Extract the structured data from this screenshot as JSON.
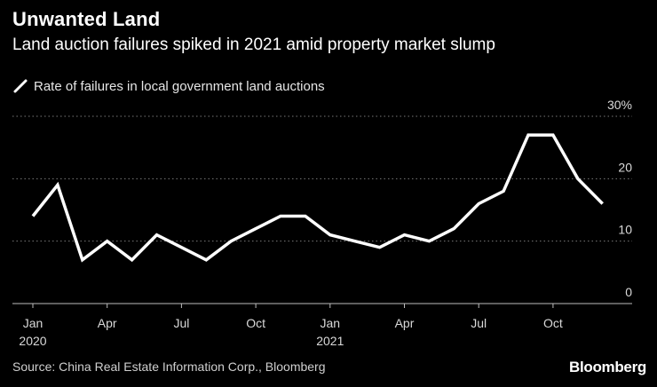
{
  "header": {
    "title": "Unwanted Land",
    "subtitle": "Land auction failures spiked in 2021 amid property market slump"
  },
  "footer": {
    "source": "Source: China Real Estate Information Corp., Bloomberg",
    "logo": "Bloomberg"
  },
  "colors": {
    "background": "#000000",
    "line": "#ffffff",
    "grid": "#7a7a7a",
    "text": "#d9d9d9"
  },
  "chart_data": {
    "type": "line",
    "title": "Unwanted Land",
    "subtitle": "Land auction failures spiked in 2021 amid property market slump",
    "xlabel": "",
    "ylabel": "",
    "legend_position": "top-left",
    "grid": true,
    "ylim": [
      0,
      30
    ],
    "y_ticks": [
      {
        "value": 30,
        "label": "30%"
      },
      {
        "value": 20,
        "label": "20"
      },
      {
        "value": 10,
        "label": "10"
      },
      {
        "value": 0,
        "label": "0"
      }
    ],
    "x_ticks": [
      {
        "index": 0,
        "label": "Jan",
        "sublabel": "2020"
      },
      {
        "index": 3,
        "label": "Apr",
        "sublabel": ""
      },
      {
        "index": 6,
        "label": "Jul",
        "sublabel": ""
      },
      {
        "index": 9,
        "label": "Oct",
        "sublabel": ""
      },
      {
        "index": 12,
        "label": "Jan",
        "sublabel": "2021"
      },
      {
        "index": 15,
        "label": "Apr",
        "sublabel": ""
      },
      {
        "index": 18,
        "label": "Jul",
        "sublabel": ""
      },
      {
        "index": 21,
        "label": "Oct",
        "sublabel": ""
      }
    ],
    "x": [
      "Jan 2020",
      "Feb 2020",
      "Mar 2020",
      "Apr 2020",
      "May 2020",
      "Jun 2020",
      "Jul 2020",
      "Aug 2020",
      "Sep 2020",
      "Oct 2020",
      "Nov 2020",
      "Dec 2020",
      "Jan 2021",
      "Feb 2021",
      "Mar 2021",
      "Apr 2021",
      "May 2021",
      "Jun 2021",
      "Jul 2021",
      "Aug 2021",
      "Sep 2021",
      "Oct 2021",
      "Nov 2021",
      "Dec 2021"
    ],
    "series": [
      {
        "name": "Rate of failures in local government land auctions",
        "values": [
          14,
          19,
          7,
          10,
          7,
          11,
          9,
          7,
          10,
          12,
          14,
          14,
          11,
          10,
          9,
          11,
          10,
          12,
          16,
          18,
          27,
          27,
          20,
          16
        ]
      }
    ]
  }
}
